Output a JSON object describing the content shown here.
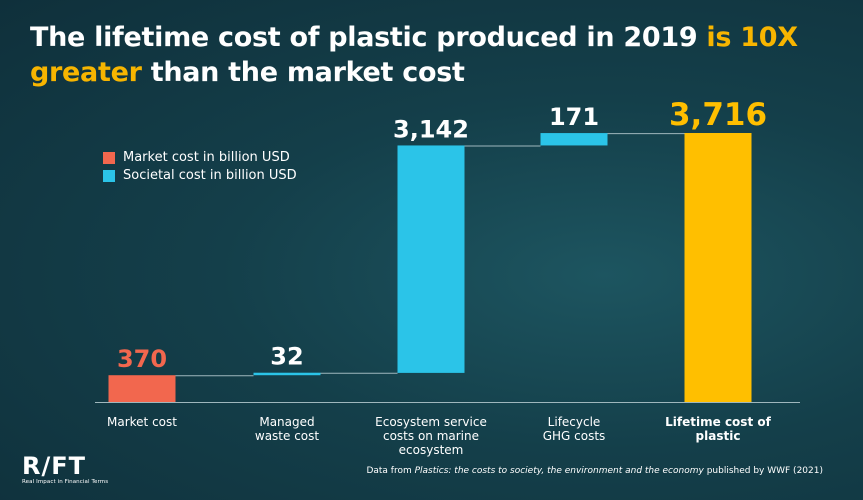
{
  "title": {
    "line1_a": "The lifetime cost of plastic produced in 2019 ",
    "line1_b": "is 10X",
    "line2_a": "greater",
    "line2_b": " than the market cost"
  },
  "legend": {
    "items": [
      {
        "label": "Market cost in billion USD",
        "color": "#f2674e"
      },
      {
        "label": "Societal cost in billion USD",
        "color": "#2bc4e8"
      }
    ]
  },
  "chart_data": {
    "type": "waterfall",
    "categories": [
      [
        "Market cost"
      ],
      [
        "Managed",
        "waste cost"
      ],
      [
        "Ecosystem service",
        "costs on marine",
        "ecosystem"
      ],
      [
        "Lifecycle",
        "GHG costs"
      ],
      [
        "Lifetime cost of",
        "plastic"
      ]
    ],
    "values": [
      370,
      32,
      3142,
      171,
      3716
    ],
    "value_labels": [
      "370",
      "32",
      "3,142",
      "171",
      "3,716"
    ],
    "kinds": [
      "market",
      "societal",
      "societal",
      "societal",
      "total"
    ],
    "colors": {
      "market": "#f2674e",
      "societal": "#2bc4e8",
      "total": "#ffbf00"
    },
    "ylim": [
      0,
      3716
    ]
  },
  "logo": {
    "text": "R/FT",
    "subtitle": "Real Impact in Financial Terms"
  },
  "source": {
    "prefix": "Data from ",
    "italic": "Plastics: the costs to society, the environment and the economy",
    "suffix": " published by WWF (2021)"
  }
}
